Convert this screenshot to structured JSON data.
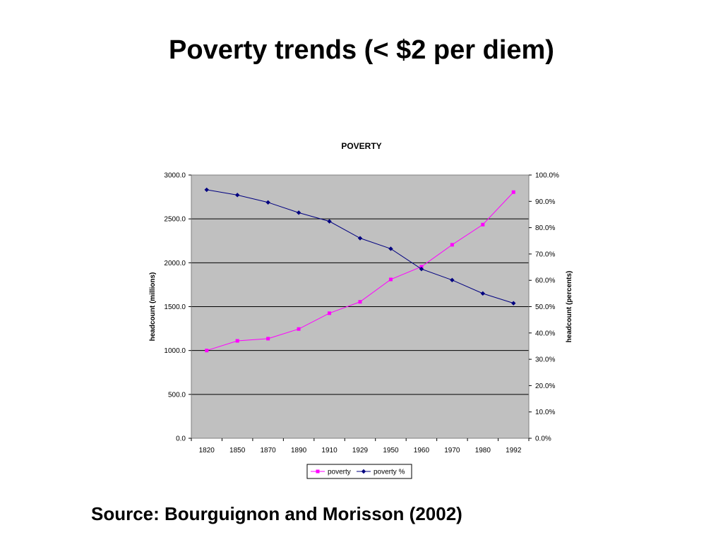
{
  "slide": {
    "title": "Poverty trends (< $2 per diem)",
    "source": "Source: Bourguignon and Morisson (2002)"
  },
  "chart_data": {
    "type": "line",
    "title": "POVERTY",
    "categories": [
      "1820",
      "1850",
      "1870",
      "1890",
      "1910",
      "1929",
      "1950",
      "1960",
      "1970",
      "1980",
      "1992"
    ],
    "y_left": {
      "label": "headcount (millions)",
      "ylim": [
        0,
        3000
      ],
      "ticks": [
        0,
        500,
        1000,
        1500,
        2000,
        2500,
        3000
      ],
      "tick_labels": [
        "0.0",
        "500.0",
        "1000.0",
        "1500.0",
        "2000.0",
        "2500.0",
        "3000.0"
      ]
    },
    "y_right": {
      "label": "headcount (percents)",
      "ylim": [
        0,
        100
      ],
      "ticks": [
        0,
        10,
        20,
        30,
        40,
        50,
        60,
        70,
        80,
        90,
        100
      ],
      "tick_labels": [
        "0.0%",
        "10.0%",
        "20.0%",
        "30.0%",
        "40.0%",
        "50.0%",
        "60.0%",
        "70.0%",
        "80.0%",
        "90.0%",
        "100.0%"
      ]
    },
    "series": [
      {
        "name": "poverty",
        "axis": "left",
        "marker": "square",
        "color": "#ff00ff",
        "values": [
          1000,
          1110,
          1135,
          1245,
          1425,
          1555,
          1810,
          1955,
          2205,
          2435,
          2805
        ]
      },
      {
        "name": "poverty %",
        "axis": "right",
        "marker": "diamond",
        "color": "#000080",
        "values": [
          94.4,
          92.4,
          89.6,
          85.7,
          82.4,
          76.0,
          72.0,
          64.3,
          60.1,
          55.0,
          51.3
        ]
      }
    ],
    "plot_background": "#c0c0c0",
    "grid": true,
    "legend_position": "bottom"
  }
}
